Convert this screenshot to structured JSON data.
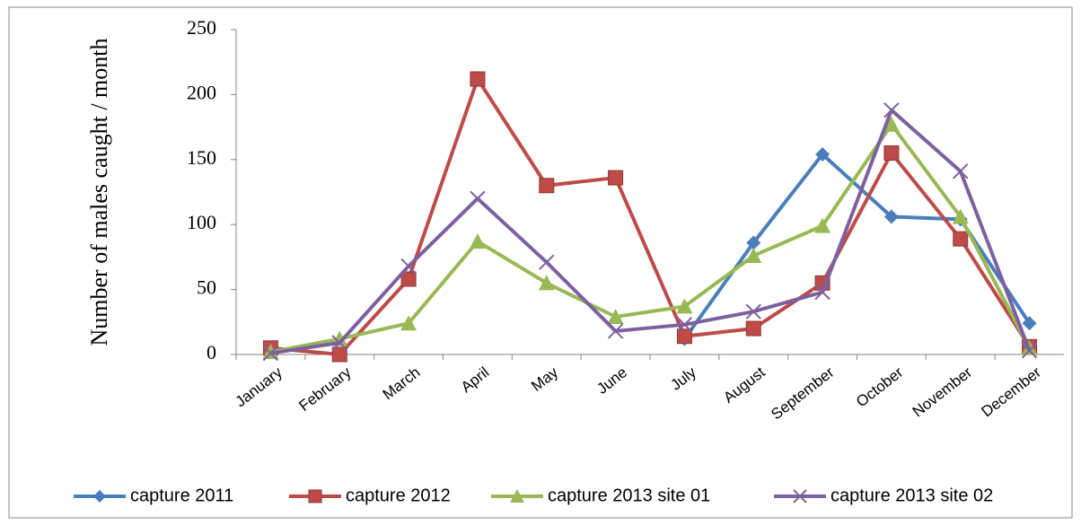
{
  "chart_data": {
    "type": "line",
    "y_label": "Number of males caught / month",
    "categories": [
      "January",
      "February",
      "March",
      "April",
      "May",
      "June",
      "July",
      "August",
      "September",
      "October",
      "November",
      "December"
    ],
    "series": [
      {
        "name": "capture 2011",
        "color": "#4a7ebb",
        "marker": "diamond",
        "values": [
          null,
          null,
          null,
          null,
          null,
          null,
          12,
          86,
          154,
          106,
          104,
          24
        ]
      },
      {
        "name": "capture 2012",
        "color": "#be4b48",
        "marker": "square",
        "values": [
          5,
          0,
          58,
          212,
          130,
          136,
          14,
          20,
          55,
          155,
          89,
          6
        ]
      },
      {
        "name": "capture 2013 site 01",
        "color": "#98b954",
        "marker": "triangle",
        "values": [
          2,
          12,
          24,
          87,
          55,
          29,
          37,
          76,
          99,
          177,
          106,
          5
        ]
      },
      {
        "name": "capture 2013 site 02",
        "color": "#7d60a0",
        "marker": "x",
        "values": [
          1,
          9,
          68,
          120,
          71,
          18,
          23,
          33,
          48,
          188,
          141,
          3
        ]
      }
    ],
    "ylim": [
      0,
      250
    ],
    "yticks": [
      0,
      50,
      100,
      150,
      200,
      250
    ],
    "legend": "bottom"
  }
}
